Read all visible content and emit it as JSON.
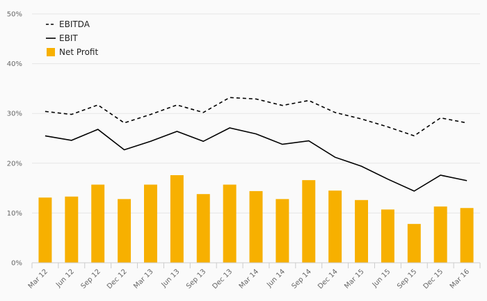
{
  "chart_data": {
    "type": "bar",
    "categories": [
      "Mar 12",
      "Jun 12",
      "Sep 12",
      "Dec 12",
      "Mar 13",
      "Jun 13",
      "Sep 13",
      "Dec 13",
      "Mar 14",
      "Jun 14",
      "Sep 14",
      "Dec 14",
      "Mar 15",
      "Jun 15",
      "Sep 15",
      "Dec 15",
      "Mar 16"
    ],
    "ylim": [
      0,
      50
    ],
    "yticks": [
      "0%",
      "10%",
      "20%",
      "30%",
      "40%",
      "50%"
    ],
    "grid": true,
    "legend_position": "top-left",
    "series": [
      {
        "name": "EBITDA",
        "type": "line",
        "style": "dashed",
        "color": "#000000",
        "values": [
          30.4,
          29.8,
          31.7,
          28.1,
          29.8,
          31.7,
          30.2,
          33.2,
          32.9,
          31.6,
          32.6,
          30.2,
          28.9,
          27.3,
          25.5,
          29.1,
          28.1
        ]
      },
      {
        "name": "EBIT",
        "type": "line",
        "style": "solid",
        "color": "#000000",
        "values": [
          25.5,
          24.6,
          26.8,
          22.7,
          24.4,
          26.4,
          24.4,
          27.1,
          25.9,
          23.8,
          24.5,
          21.2,
          19.4,
          16.8,
          14.4,
          17.6,
          16.5
        ]
      },
      {
        "name": "Net Profit",
        "type": "bar",
        "color": "#F7B000",
        "values": [
          13.1,
          13.3,
          15.7,
          12.8,
          15.7,
          17.6,
          13.8,
          15.7,
          14.4,
          12.8,
          16.6,
          14.5,
          12.6,
          10.7,
          7.8,
          11.3,
          11.0
        ]
      }
    ]
  }
}
